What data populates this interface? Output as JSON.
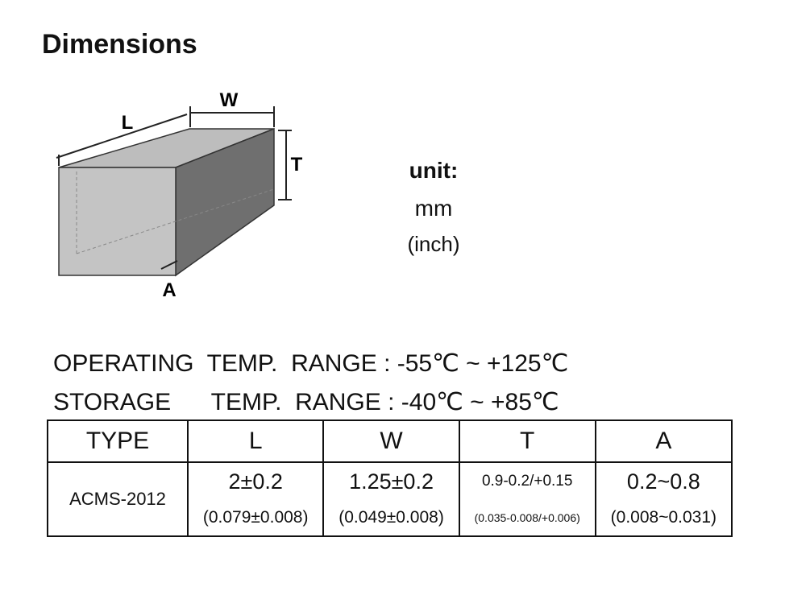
{
  "title": "Dimensions",
  "diagram": {
    "labels": [
      "L",
      "W",
      "T",
      "A"
    ]
  },
  "unit": {
    "label": "unit:",
    "primary": "mm",
    "secondary": "(inch)"
  },
  "temperature": [
    "OPERATING  TEMP.  RANGE : -55℃ ~ +125℃",
    "STORAGE      TEMP.  RANGE : -40℃ ~ +85℃"
  ],
  "table": {
    "header": [
      "TYPE",
      "L",
      "W",
      "T",
      "A"
    ],
    "rows": [
      {
        "type": "ACMS-2012",
        "cells": [
          {
            "mm": "2±0.2",
            "inch": "(0.079±0.008)"
          },
          {
            "mm": "1.25±0.2",
            "inch": "(0.049±0.008)"
          },
          {
            "mm": "0.9-0.2/+0.15",
            "inch": "(0.035-0.008/+0.006)"
          },
          {
            "mm": "0.2~0.8",
            "inch": "(0.008~0.031)"
          }
        ]
      }
    ]
  }
}
